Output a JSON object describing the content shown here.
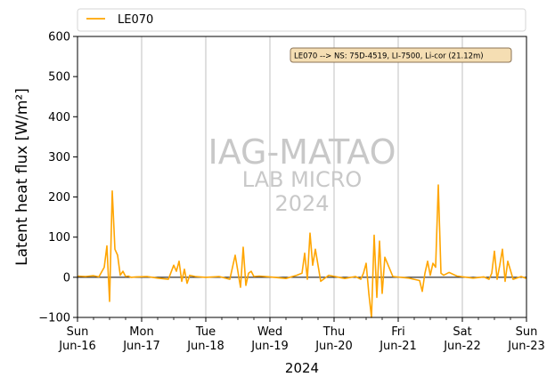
{
  "chart_data": {
    "type": "line",
    "title": "",
    "ylabel": "Latent heat flux [W/m²]",
    "xlabel": "2024",
    "ylim": [
      -100,
      600
    ],
    "yticks": [
      -100,
      0,
      100,
      200,
      300,
      400,
      500,
      600
    ],
    "xlim": [
      "2024-06-16",
      "2024-06-23"
    ],
    "xticks": [
      {
        "day": "Sun",
        "date": "Jun-16"
      },
      {
        "day": "Mon",
        "date": "Jun-17"
      },
      {
        "day": "Tue",
        "date": "Jun-18"
      },
      {
        "day": "Wed",
        "date": "Jun-19"
      },
      {
        "day": "Thu",
        "date": "Jun-20"
      },
      {
        "day": "Fri",
        "date": "Jun-21"
      },
      {
        "day": "Sat",
        "date": "Jun-22"
      },
      {
        "day": "Sun",
        "date": "Jun-23"
      }
    ],
    "grid": "vertical",
    "legend": "top",
    "annotation": "LE070 --> NS: 75D-4519, LI-7500, Li-cor (21.12m)",
    "watermark": [
      "IAG-MATAO",
      "LAB MICRO",
      "2024"
    ],
    "series": [
      {
        "name": "LE070",
        "color": "#ffa500",
        "x": [
          "2024-06-16 00:00",
          "2024-06-16 03:00",
          "2024-06-16 06:00",
          "2024-06-16 08:00",
          "2024-06-16 10:00",
          "2024-06-16 11:00",
          "2024-06-16 12:00",
          "2024-06-16 13:00",
          "2024-06-16 14:00",
          "2024-06-16 15:00",
          "2024-06-16 16:00",
          "2024-06-16 17:00",
          "2024-06-16 18:00",
          "2024-06-16 19:00",
          "2024-06-16 20:00",
          "2024-06-16 22:00",
          "2024-06-17 02:00",
          "2024-06-17 06:00",
          "2024-06-17 10:00",
          "2024-06-17 12:00",
          "2024-06-17 13:00",
          "2024-06-17 14:00",
          "2024-06-17 15:00",
          "2024-06-17 16:00",
          "2024-06-17 17:00",
          "2024-06-17 18:00",
          "2024-06-17 20:00",
          "2024-06-18 00:00",
          "2024-06-18 05:00",
          "2024-06-18 09:00",
          "2024-06-18 11:00",
          "2024-06-18 13:00",
          "2024-06-18 14:00",
          "2024-06-18 15:00",
          "2024-06-18 16:00",
          "2024-06-18 17:00",
          "2024-06-18 18:00",
          "2024-06-18 20:00",
          "2024-06-19 00:00",
          "2024-06-19 06:00",
          "2024-06-19 10:00",
          "2024-06-19 12:00",
          "2024-06-19 13:00",
          "2024-06-19 14:00",
          "2024-06-19 15:00",
          "2024-06-19 16:00",
          "2024-06-19 17:00",
          "2024-06-19 19:00",
          "2024-06-19 22:00",
          "2024-06-20 04:00",
          "2024-06-20 08:00",
          "2024-06-20 10:00",
          "2024-06-20 11:00",
          "2024-06-20 12:00",
          "2024-06-20 13:00",
          "2024-06-20 14:00",
          "2024-06-20 15:00",
          "2024-06-20 16:00",
          "2024-06-20 17:00",
          "2024-06-20 18:00",
          "2024-06-20 19:00",
          "2024-06-20 22:00",
          "2024-06-21 04:00",
          "2024-06-21 08:00",
          "2024-06-21 09:00",
          "2024-06-21 10:00",
          "2024-06-21 11:00",
          "2024-06-21 12:00",
          "2024-06-21 13:00",
          "2024-06-21 14:00",
          "2024-06-21 15:00",
          "2024-06-21 16:00",
          "2024-06-21 17:00",
          "2024-06-21 19:00",
          "2024-06-21 22:00",
          "2024-06-22 04:00",
          "2024-06-22 08:00",
          "2024-06-22 10:00",
          "2024-06-22 11:00",
          "2024-06-22 12:00",
          "2024-06-22 13:00",
          "2024-06-22 14:00",
          "2024-06-22 15:00",
          "2024-06-22 16:00",
          "2024-06-22 17:00",
          "2024-06-22 19:00",
          "2024-06-22 22:00",
          "2024-06-23 00:00"
        ],
        "values": [
          3,
          2,
          4,
          1,
          25,
          78,
          -60,
          215,
          70,
          55,
          5,
          15,
          2,
          3,
          0,
          1,
          2,
          -2,
          -5,
          30,
          15,
          40,
          -10,
          20,
          -15,
          5,
          2,
          0,
          2,
          -5,
          55,
          -25,
          75,
          -20,
          10,
          15,
          2,
          3,
          1,
          -3,
          5,
          10,
          60,
          -5,
          110,
          30,
          70,
          -10,
          5,
          -3,
          2,
          -5,
          10,
          35,
          -40,
          -100,
          105,
          -50,
          90,
          -40,
          50,
          2,
          -2,
          -8,
          -35,
          10,
          40,
          5,
          35,
          25,
          230,
          10,
          5,
          12,
          3,
          -2,
          1,
          -5,
          10,
          65,
          -5,
          30,
          70,
          -10,
          40,
          -5,
          2,
          -3
        ]
      }
    ]
  }
}
